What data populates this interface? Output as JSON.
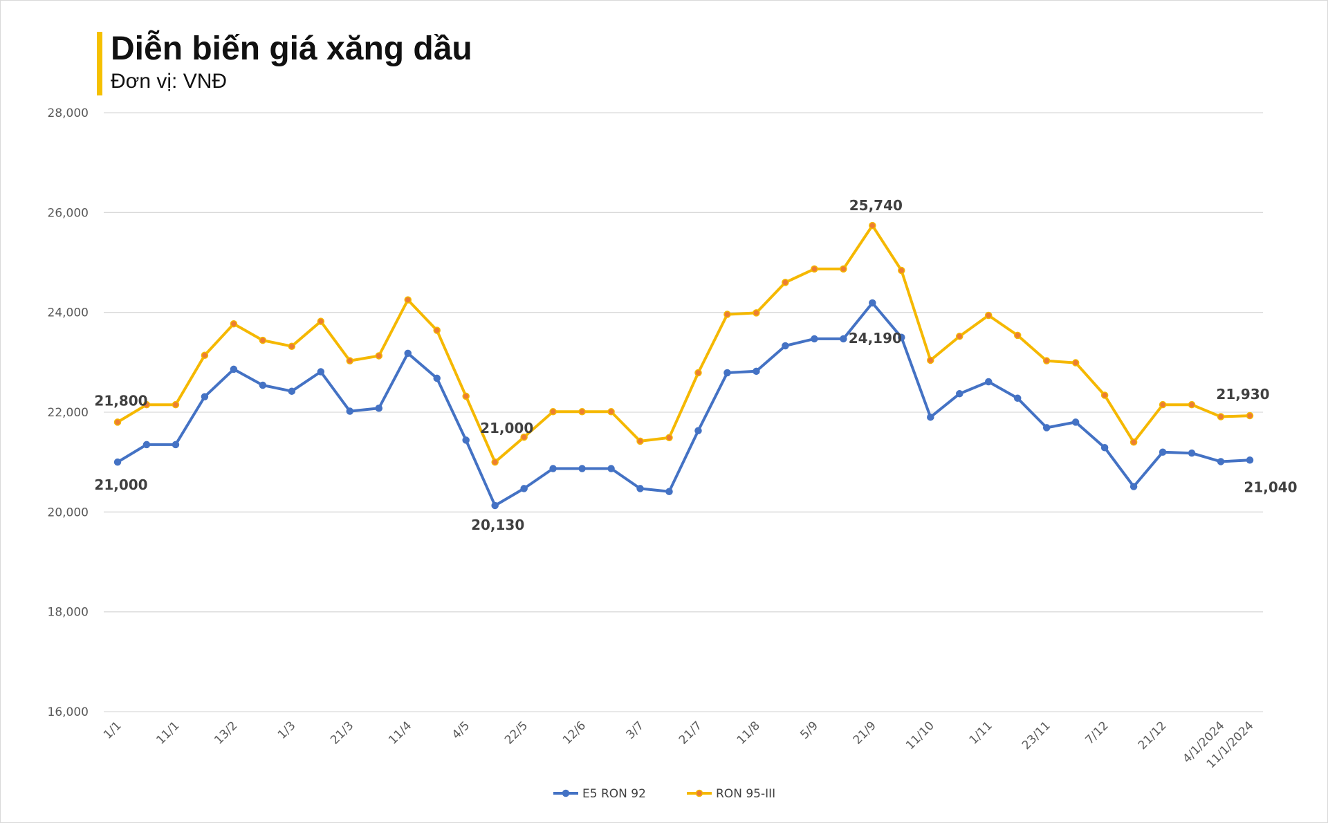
{
  "header": {
    "title": "Diễn biến giá xăng dầu",
    "subtitle": "Đơn vị: VNĐ"
  },
  "colors": {
    "e5": "#4472c4",
    "ron95": "#f5b800",
    "ron95_marker": "#ed7d31",
    "grid": "#d9d9d9",
    "accent_bar": "#f5c000"
  },
  "chart_data": {
    "type": "line",
    "title": "Diễn biến giá xăng dầu",
    "subtitle": "Đơn vị: VNĐ",
    "ylim": [
      16000,
      28000
    ],
    "yticks": [
      "16,000",
      "18,000",
      "20,000",
      "22,000",
      "24,000",
      "26,000",
      "28,000"
    ],
    "ytick_values": [
      16000,
      18000,
      20000,
      22000,
      24000,
      26000,
      28000
    ],
    "grid": true,
    "legend_position": "bottom",
    "categories": [
      "1/1",
      "",
      "11/1",
      "",
      "13/2",
      "",
      "1/3",
      "",
      "21/3",
      "",
      "11/4",
      "",
      "4/5",
      "",
      "22/5",
      "",
      "12/6",
      "",
      "3/7",
      "",
      "21/7",
      "",
      "11/8",
      "",
      "5/9",
      "",
      "21/9",
      "",
      "11/10",
      "",
      "1/11",
      "",
      "23/11",
      "",
      "7/12",
      "",
      "21/12",
      "",
      "4/1/2024",
      "11/1/2024"
    ],
    "series": [
      {
        "name": "E5 RON 92",
        "values": [
          21000,
          21350,
          21350,
          22310,
          22860,
          22540,
          22420,
          22810,
          22020,
          22080,
          23180,
          22680,
          21440,
          20130,
          20470,
          20870,
          20870,
          20870,
          20470,
          20410,
          21630,
          22790,
          22820,
          23330,
          23470,
          23470,
          24190,
          23500,
          21900,
          22370,
          22610,
          22280,
          21690,
          21800,
          21290,
          20510,
          21200,
          21180,
          21010,
          21040
        ]
      },
      {
        "name": "RON 95-III",
        "values": [
          21800,
          22150,
          22150,
          23140,
          23770,
          23440,
          23320,
          23820,
          23030,
          23130,
          24250,
          23640,
          22320,
          21000,
          21500,
          22010,
          22010,
          22010,
          21420,
          21490,
          22790,
          23960,
          23990,
          24600,
          24870,
          24870,
          25740,
          24840,
          23040,
          23520,
          23940,
          23540,
          23030,
          22990,
          22340,
          21400,
          22150,
          22150,
          21910,
          21930
        ]
      }
    ],
    "annotations": [
      {
        "series": "RON 95-III",
        "index": 0,
        "label": "21,800"
      },
      {
        "series": "E5 RON 92",
        "index": 0,
        "label": "21,000"
      },
      {
        "series": "RON 95-III",
        "index": 13,
        "label": "21,000"
      },
      {
        "series": "E5 RON 92",
        "index": 13,
        "label": "20,130"
      },
      {
        "series": "RON 95-III",
        "index": 26,
        "label": "25,740"
      },
      {
        "series": "E5 RON 92",
        "index": 26,
        "label": "24,190"
      },
      {
        "series": "RON 95-III",
        "index": 39,
        "label": "21,930"
      },
      {
        "series": "E5 RON 92",
        "index": 39,
        "label": "21,040"
      }
    ]
  }
}
